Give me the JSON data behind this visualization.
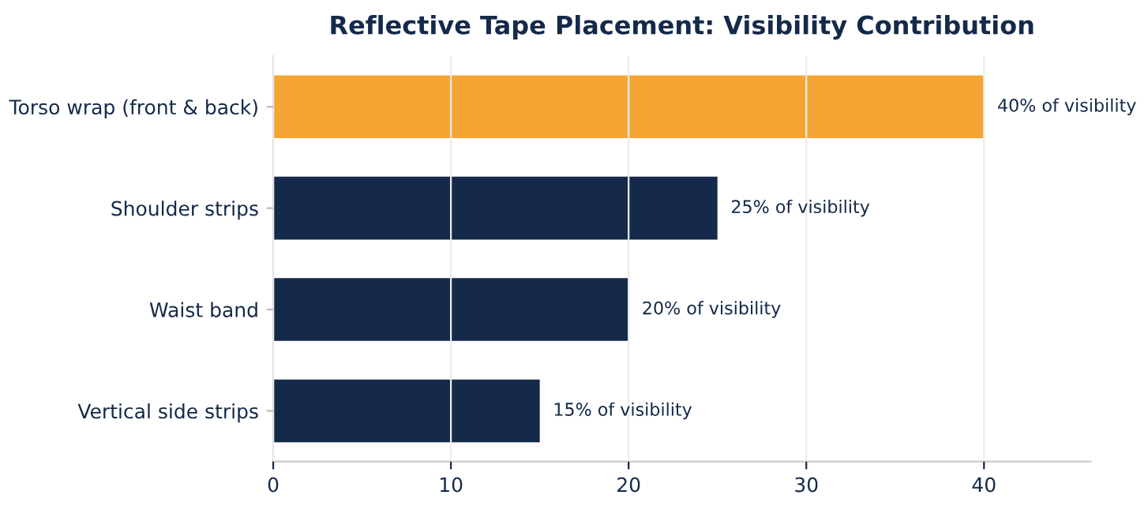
{
  "chart_data": {
    "type": "bar",
    "orientation": "horizontal",
    "title": "Reflective Tape Placement: Visibility Contribution",
    "categories": [
      "Torso wrap (front & back)",
      "Shoulder strips",
      "Waist band",
      "Vertical side strips"
    ],
    "values": [
      40,
      25,
      20,
      15
    ],
    "colors": [
      "#f5a533",
      "#152a4a",
      "#152a4a",
      "#152a4a"
    ],
    "value_labels": [
      "40% of visibility",
      "25% of visibility",
      "20% of visibility",
      "15% of visibility"
    ],
    "xlim": [
      0,
      46
    ],
    "xticks": [
      0,
      10,
      20,
      30,
      40
    ],
    "grid": "x",
    "legend": false
  }
}
